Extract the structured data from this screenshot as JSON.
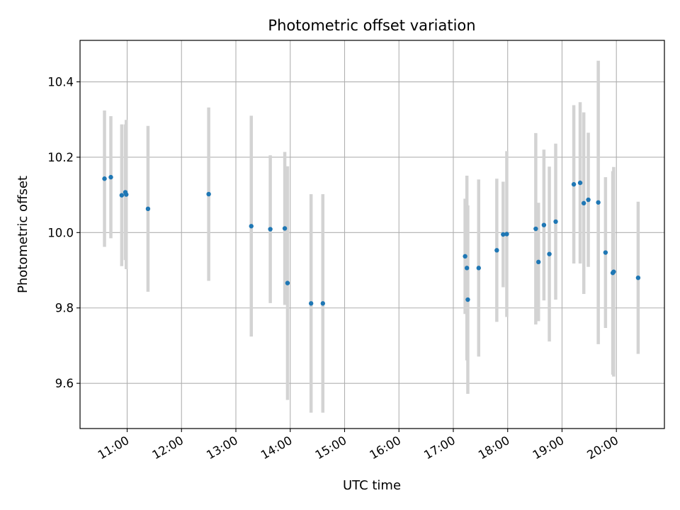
{
  "chart_data": {
    "type": "scatter",
    "title": "Photometric offset variation",
    "xlabel": "UTC time",
    "ylabel": "Photometric offset",
    "xlim": [
      "10:08",
      "20:53"
    ],
    "ylim": [
      9.48,
      10.51
    ],
    "x_ticks": [
      "11:00",
      "12:00",
      "13:00",
      "14:00",
      "15:00",
      "16:00",
      "17:00",
      "18:00",
      "19:00",
      "20:00"
    ],
    "y_ticks": [
      9.6,
      9.8,
      10.0,
      10.2,
      10.4
    ],
    "y_tick_labels": [
      "9.6",
      "9.8",
      "10.0",
      "10.2",
      "10.4"
    ],
    "grid": true,
    "colors": {
      "marker": "#1f77b4",
      "errorbar": "#d3d3d3",
      "grid": "#b0b0b0"
    },
    "series": [
      {
        "points": [
          {
            "x": "10:35",
            "y": 10.143,
            "err": 0.181
          },
          {
            "x": "10:42",
            "y": 10.147,
            "err": 0.162
          },
          {
            "x": "10:54",
            "y": 10.099,
            "err": 0.188
          },
          {
            "x": "10:58",
            "y": 10.107,
            "err": 0.18
          },
          {
            "x": "10:59",
            "y": 10.101,
            "err": 0.198
          },
          {
            "x": "11:23",
            "y": 10.063,
            "err": 0.22
          },
          {
            "x": "12:30",
            "y": 10.102,
            "err": 0.23
          },
          {
            "x": "13:17",
            "y": 10.017,
            "err": 0.293
          },
          {
            "x": "13:38",
            "y": 10.009,
            "err": 0.196
          },
          {
            "x": "13:54",
            "y": 10.011,
            "err": 0.203
          },
          {
            "x": "13:57",
            "y": 9.866,
            "err": 0.31
          },
          {
            "x": "14:23",
            "y": 9.812,
            "err": 0.29
          },
          {
            "x": "14:36",
            "y": 9.812,
            "err": 0.29
          },
          {
            "x": "17:13",
            "y": 9.937,
            "err": 0.153
          },
          {
            "x": "17:15",
            "y": 9.906,
            "err": 0.245
          },
          {
            "x": "17:16",
            "y": 9.822,
            "err": 0.25
          },
          {
            "x": "17:28",
            "y": 9.906,
            "err": 0.235
          },
          {
            "x": "17:48",
            "y": 9.953,
            "err": 0.19
          },
          {
            "x": "17:55",
            "y": 9.995,
            "err": 0.14
          },
          {
            "x": "17:59",
            "y": 9.996,
            "err": 0.22
          },
          {
            "x": "18:31",
            "y": 10.01,
            "err": 0.254
          },
          {
            "x": "18:34",
            "y": 9.922,
            "err": 0.157
          },
          {
            "x": "18:40",
            "y": 10.02,
            "err": 0.2
          },
          {
            "x": "18:46",
            "y": 9.943,
            "err": 0.232
          },
          {
            "x": "18:53",
            "y": 10.029,
            "err": 0.207
          },
          {
            "x": "19:13",
            "y": 10.128,
            "err": 0.21
          },
          {
            "x": "19:20",
            "y": 10.132,
            "err": 0.214
          },
          {
            "x": "19:24",
            "y": 10.078,
            "err": 0.241
          },
          {
            "x": "19:29",
            "y": 10.087,
            "err": 0.178
          },
          {
            "x": "19:40",
            "y": 10.08,
            "err": 0.376
          },
          {
            "x": "19:48",
            "y": 9.947,
            "err": 0.2
          },
          {
            "x": "19:56",
            "y": 9.893,
            "err": 0.27
          },
          {
            "x": "19:57",
            "y": 9.896,
            "err": 0.278
          },
          {
            "x": "20:24",
            "y": 9.88,
            "err": 0.202
          }
        ]
      }
    ]
  }
}
